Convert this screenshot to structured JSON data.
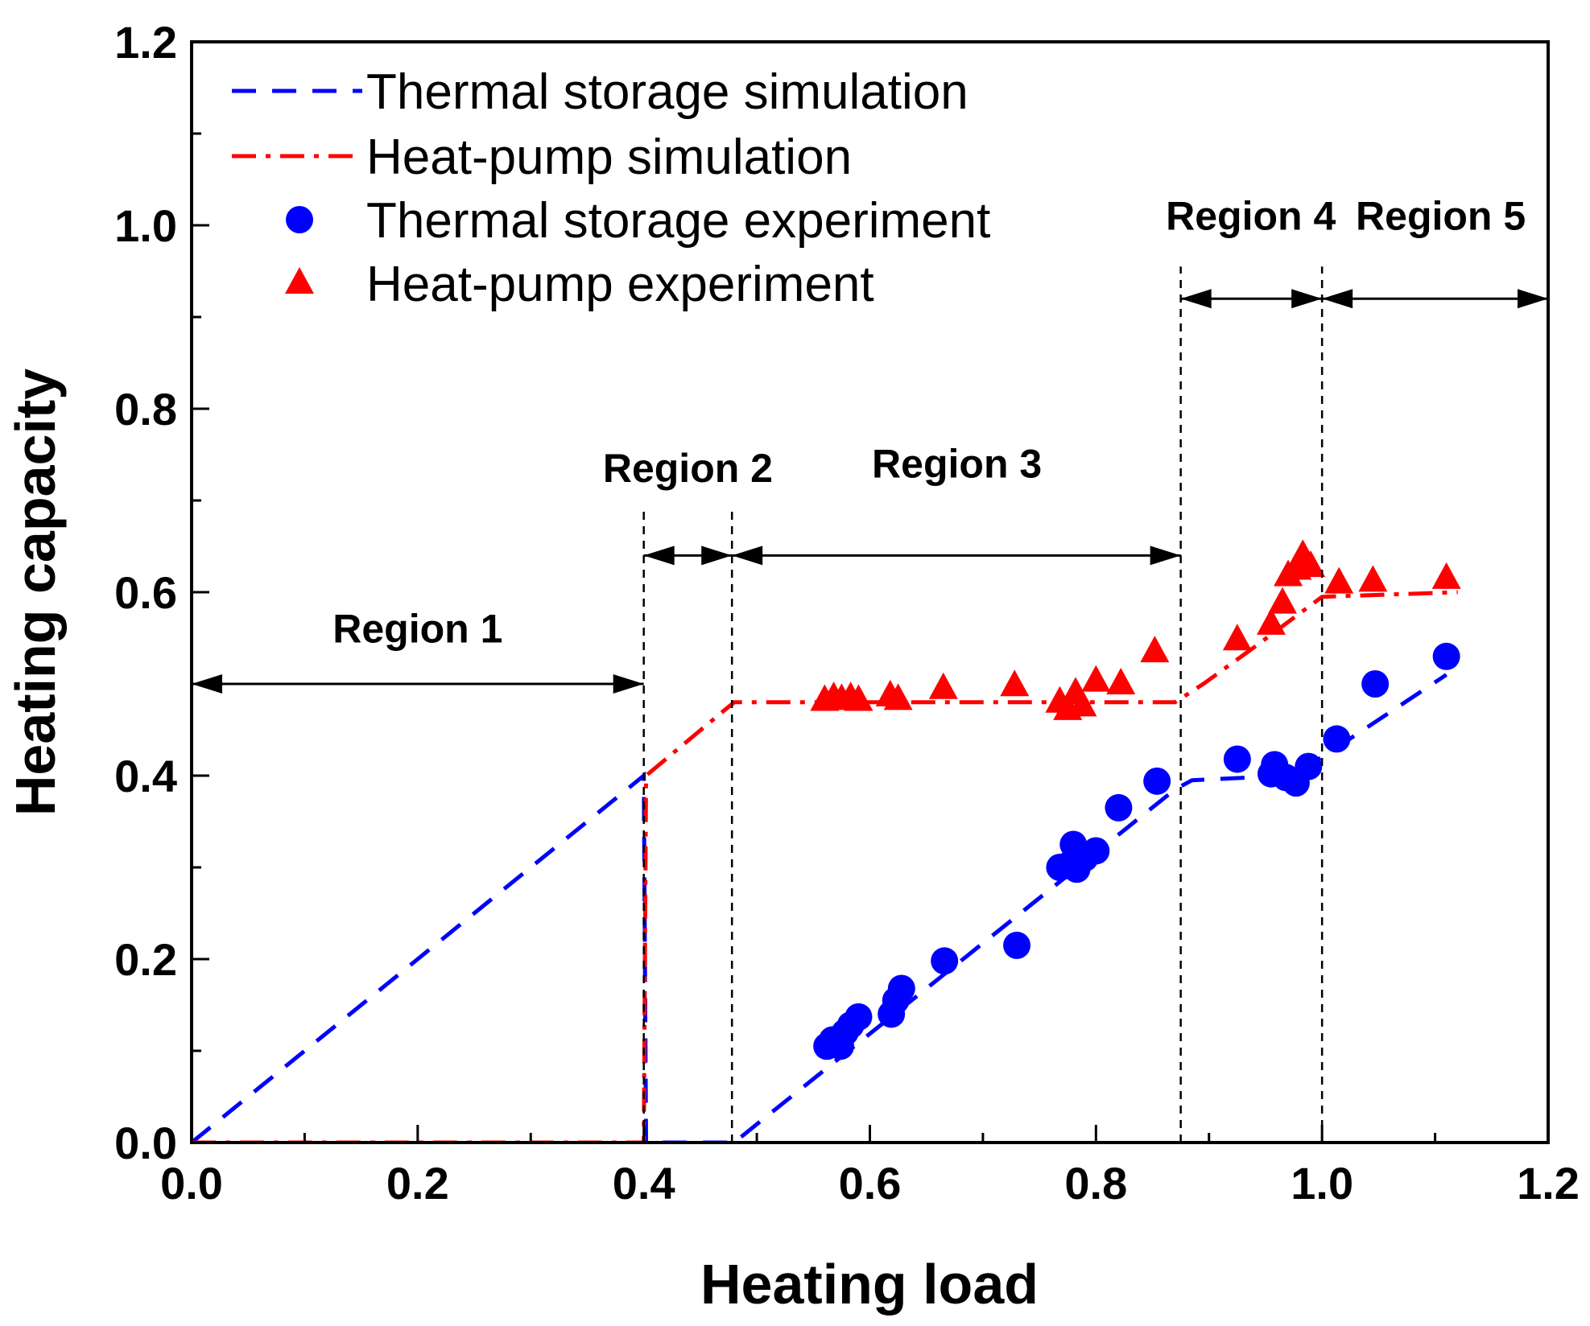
{
  "chart_data": {
    "type": "line",
    "xlabel": "Heating load",
    "ylabel": "Heating capacity",
    "xlim": [
      0.0,
      1.2
    ],
    "ylim": [
      0.0,
      1.2
    ],
    "xticks": [
      0.0,
      0.2,
      0.4,
      0.6,
      0.8,
      1.0,
      1.2
    ],
    "yticks": [
      0.0,
      0.2,
      0.4,
      0.6,
      0.8,
      1.0,
      1.2
    ],
    "xtick_labels": [
      "0.0",
      "0.2",
      "0.4",
      "0.6",
      "0.8",
      "1.0",
      "1.2"
    ],
    "ytick_labels": [
      "0.0",
      "0.2",
      "0.4",
      "0.6",
      "0.8",
      "1.0",
      "1.2"
    ],
    "grid": false,
    "legend_position": "top-left",
    "legend": [
      {
        "label": "Thermal storage simulation",
        "series": "ts_sim"
      },
      {
        "label": "Heat-pump simulation",
        "series": "hp_sim"
      },
      {
        "label": "Thermal storage experiment",
        "series": "ts_exp"
      },
      {
        "label": "Heat-pump experiment",
        "series": "hp_exp"
      }
    ],
    "series": [
      {
        "id": "ts_sim",
        "name": "Thermal storage simulation",
        "kind": "line",
        "style": "dashed",
        "color": "#0000ff",
        "points": [
          [
            0.0,
            0.0
          ],
          [
            0.4,
            0.4
          ],
          [
            0.402,
            0.0
          ],
          [
            0.48,
            0.0
          ],
          [
            0.5,
            0.02
          ],
          [
            0.87,
            0.385
          ],
          [
            0.885,
            0.395
          ],
          [
            0.97,
            0.4
          ],
          [
            1.0,
            0.42
          ],
          [
            1.11,
            0.51
          ]
        ]
      },
      {
        "id": "hp_sim",
        "name": "Heat-pump simulation",
        "kind": "line",
        "style": "dashdot",
        "color": "#ff0000",
        "points": [
          [
            0.0,
            0.0
          ],
          [
            0.4,
            0.0
          ],
          [
            0.402,
            0.4
          ],
          [
            0.47,
            0.47
          ],
          [
            0.48,
            0.48
          ],
          [
            0.87,
            0.48
          ],
          [
            0.895,
            0.5
          ],
          [
            0.94,
            0.54
          ],
          [
            1.0,
            0.595
          ],
          [
            1.12,
            0.6
          ]
        ]
      },
      {
        "id": "ts_exp",
        "name": "Thermal storage experiment",
        "kind": "scatter",
        "marker": "circle",
        "color": "#0000ff",
        "points": [
          [
            0.562,
            0.105
          ],
          [
            0.567,
            0.112
          ],
          [
            0.574,
            0.105
          ],
          [
            0.578,
            0.12
          ],
          [
            0.583,
            0.128
          ],
          [
            0.59,
            0.137
          ],
          [
            0.619,
            0.14
          ],
          [
            0.623,
            0.155
          ],
          [
            0.628,
            0.168
          ],
          [
            0.666,
            0.198
          ],
          [
            0.73,
            0.215
          ],
          [
            0.768,
            0.3
          ],
          [
            0.775,
            0.302
          ],
          [
            0.78,
            0.325
          ],
          [
            0.783,
            0.298
          ],
          [
            0.79,
            0.31
          ],
          [
            0.8,
            0.318
          ],
          [
            0.82,
            0.365
          ],
          [
            0.854,
            0.394
          ],
          [
            0.925,
            0.418
          ],
          [
            0.955,
            0.402
          ],
          [
            0.958,
            0.412
          ],
          [
            0.968,
            0.398
          ],
          [
            0.977,
            0.392
          ],
          [
            0.988,
            0.41
          ],
          [
            1.013,
            0.44
          ],
          [
            1.047,
            0.5
          ],
          [
            1.11,
            0.53
          ]
        ]
      },
      {
        "id": "hp_exp",
        "name": "Heat-pump experiment",
        "kind": "scatter",
        "marker": "triangle",
        "color": "#ff0000",
        "points": [
          [
            0.56,
            0.482
          ],
          [
            0.568,
            0.485
          ],
          [
            0.575,
            0.483
          ],
          [
            0.583,
            0.485
          ],
          [
            0.59,
            0.482
          ],
          [
            0.618,
            0.487
          ],
          [
            0.625,
            0.483
          ],
          [
            0.665,
            0.495
          ],
          [
            0.728,
            0.498
          ],
          [
            0.768,
            0.48
          ],
          [
            0.775,
            0.472
          ],
          [
            0.782,
            0.49
          ],
          [
            0.788,
            0.476
          ],
          [
            0.8,
            0.503
          ],
          [
            0.822,
            0.5
          ],
          [
            0.852,
            0.535
          ],
          [
            0.925,
            0.548
          ],
          [
            0.955,
            0.565
          ],
          [
            0.965,
            0.588
          ],
          [
            0.97,
            0.618
          ],
          [
            0.978,
            0.625
          ],
          [
            0.983,
            0.64
          ],
          [
            0.99,
            0.628
          ],
          [
            1.015,
            0.61
          ],
          [
            1.045,
            0.612
          ],
          [
            1.11,
            0.615
          ]
        ]
      }
    ],
    "boundaries": [
      0.4,
      0.478,
      0.875,
      1.0
    ],
    "regions": [
      {
        "label": "Region 1",
        "x_range": [
          0.0,
          0.4
        ],
        "arrow_y": 0.5,
        "text_x": 0.2,
        "text_y": 0.545
      },
      {
        "label": "Region 2",
        "x_range": [
          0.4,
          0.478
        ],
        "arrow_y": 0.64,
        "text_x": 0.439,
        "text_y": 0.72
      },
      {
        "label": "Region 3",
        "x_range": [
          0.478,
          0.875
        ],
        "arrow_y": 0.64,
        "text_x": 0.677,
        "text_y": 0.725
      },
      {
        "label": "Region 4",
        "x_range": [
          0.875,
          1.0
        ],
        "arrow_y": 0.92,
        "text_x": 0.937,
        "text_y": 0.995
      },
      {
        "label": "Region 5",
        "x_range": [
          1.0,
          1.2
        ],
        "arrow_y": 0.92,
        "text_x": 1.105,
        "text_y": 0.995
      }
    ]
  }
}
